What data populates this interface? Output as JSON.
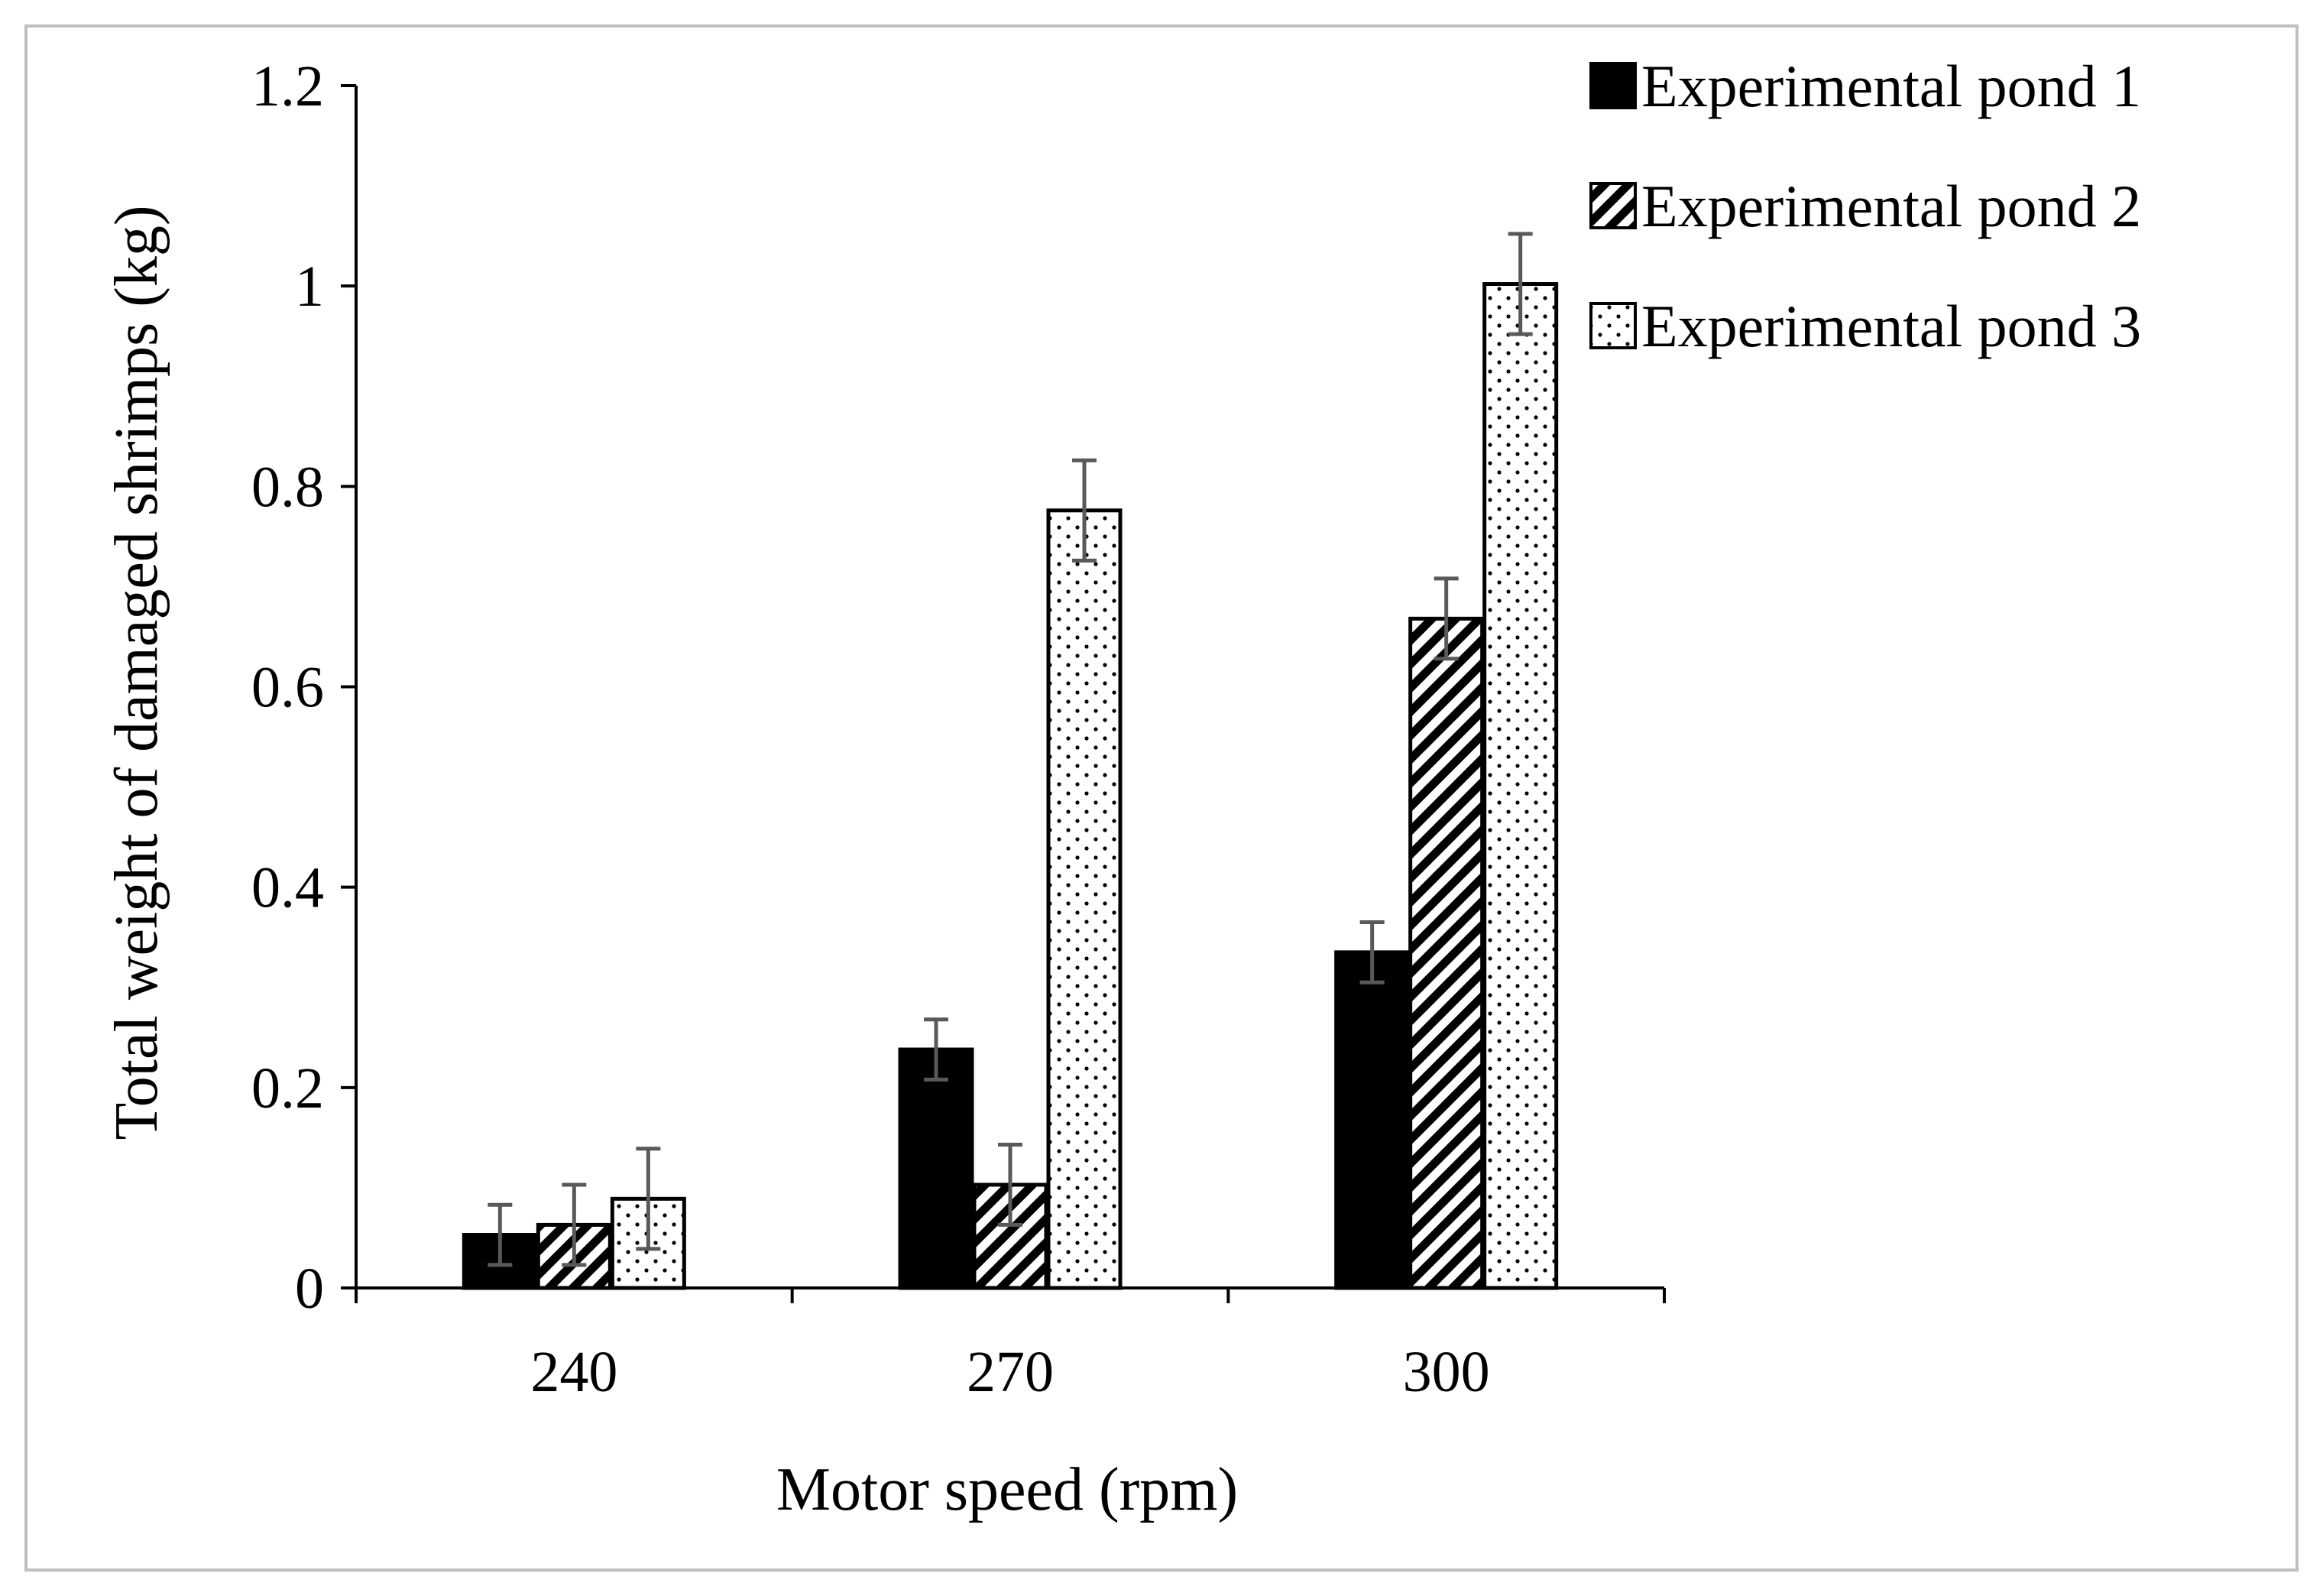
{
  "chart_data": {
    "type": "bar",
    "title": "",
    "xlabel": "Motor speed (rpm)",
    "ylabel": "Total weight of damaged shrimps (kg)",
    "ylim": [
      0,
      1.2
    ],
    "yticks": [
      "0",
      "0.2",
      "0.4",
      "0.6",
      "0.8",
      "1",
      "1.2"
    ],
    "categories": [
      "240",
      "270",
      "300"
    ],
    "series": [
      {
        "name": "Experimental pond 1",
        "pattern": "solid",
        "values": [
          0.053,
          0.238,
          0.335
        ],
        "errors": [
          0.03,
          0.03,
          0.03
        ]
      },
      {
        "name": "Experimental pond 2",
        "pattern": "diagonal",
        "values": [
          0.063,
          0.103,
          0.668
        ],
        "errors": [
          0.04,
          0.04,
          0.04
        ]
      },
      {
        "name": "Experimental pond 3",
        "pattern": "dotted",
        "values": [
          0.089,
          0.776,
          1.002
        ],
        "errors": [
          0.05,
          0.05,
          0.05
        ]
      }
    ],
    "legend_position": "top-right",
    "colors": {
      "bar_fill": "#000000",
      "background": "#ffffff",
      "error_bar": "#595959",
      "frame": "#bfbfbf"
    }
  }
}
